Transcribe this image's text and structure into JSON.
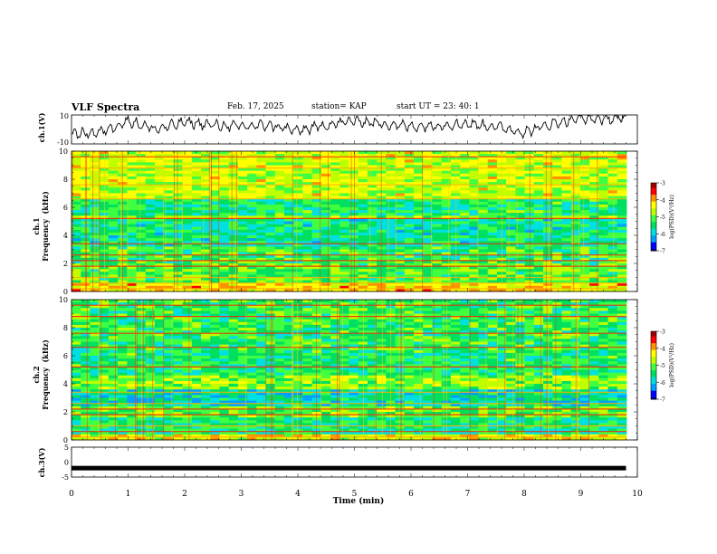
{
  "header": {
    "title": "VLF Spectra",
    "date": "Feb. 17, 2025",
    "station": "station= KAP",
    "start": "start  UT  =   23: 40: 1"
  },
  "colors": {
    "black": "#000000",
    "colormap": [
      "#000080",
      "#0000ff",
      "#00a0ff",
      "#00e0e0",
      "#00e060",
      "#40ff40",
      "#c0ff00",
      "#ffff00",
      "#ff9000",
      "#ff0000",
      "#a00000"
    ]
  },
  "chart_data": [
    {
      "id": "ch1_voltage",
      "type": "line",
      "ylabel": "ch.1(V)",
      "ylim": [
        -10,
        10
      ],
      "yticks": [
        "10",
        "-10"
      ],
      "xlim": [
        0,
        10
      ],
      "description_series": "waveform",
      "x": [
        0,
        0.5,
        1,
        1.5,
        2,
        2.5,
        3,
        3.5,
        4,
        4.5,
        5,
        5.5,
        6,
        6.5,
        7,
        7.5,
        8,
        8.5,
        9,
        9.5,
        9.8
      ],
      "values": [
        -3,
        -2,
        6,
        0,
        5,
        3,
        2,
        3,
        -1,
        3,
        6,
        4,
        2,
        3,
        4,
        2,
        -2,
        4,
        8,
        7,
        9
      ]
    },
    {
      "id": "ch1_spectrogram",
      "type": "heatmap",
      "ylabel": "ch.1\nFrequency  (kHz)",
      "ylim": [
        0,
        10
      ],
      "yticks": [
        "0",
        "2",
        "4",
        "6",
        "8",
        "10"
      ],
      "xlim": [
        0,
        10
      ],
      "colorbar": {
        "label": "log(PSD)(V²/Hz)",
        "range": [
          -7,
          -3
        ],
        "ticks": [
          "-3",
          "-4",
          "-5",
          "-6",
          "-7"
        ]
      }
    },
    {
      "id": "ch2_spectrogram",
      "type": "heatmap",
      "ylabel": "ch.2\nFrequency  (kHz)",
      "ylim": [
        0,
        10
      ],
      "yticks": [
        "0",
        "2",
        "4",
        "6",
        "8",
        "10"
      ],
      "xlim": [
        0,
        10
      ],
      "colorbar": {
        "label": "log(PSD)(V²/Hz)",
        "range": [
          -7,
          -3
        ],
        "ticks": [
          "-3",
          "-4",
          "-5",
          "-6",
          "-7"
        ]
      }
    },
    {
      "id": "ch3_voltage",
      "type": "line",
      "ylabel": "ch.3(V)",
      "ylim": [
        -5,
        5
      ],
      "yticks": [
        "5",
        "0",
        "-5"
      ],
      "xlim": [
        0,
        10
      ],
      "x": [
        0,
        9.8
      ],
      "values": [
        -2,
        -2
      ]
    }
  ],
  "xaxis": {
    "label": "Time  (min)",
    "ticks": [
      "0",
      "1",
      "2",
      "3",
      "4",
      "5",
      "6",
      "7",
      "8",
      "9",
      "10"
    ]
  }
}
